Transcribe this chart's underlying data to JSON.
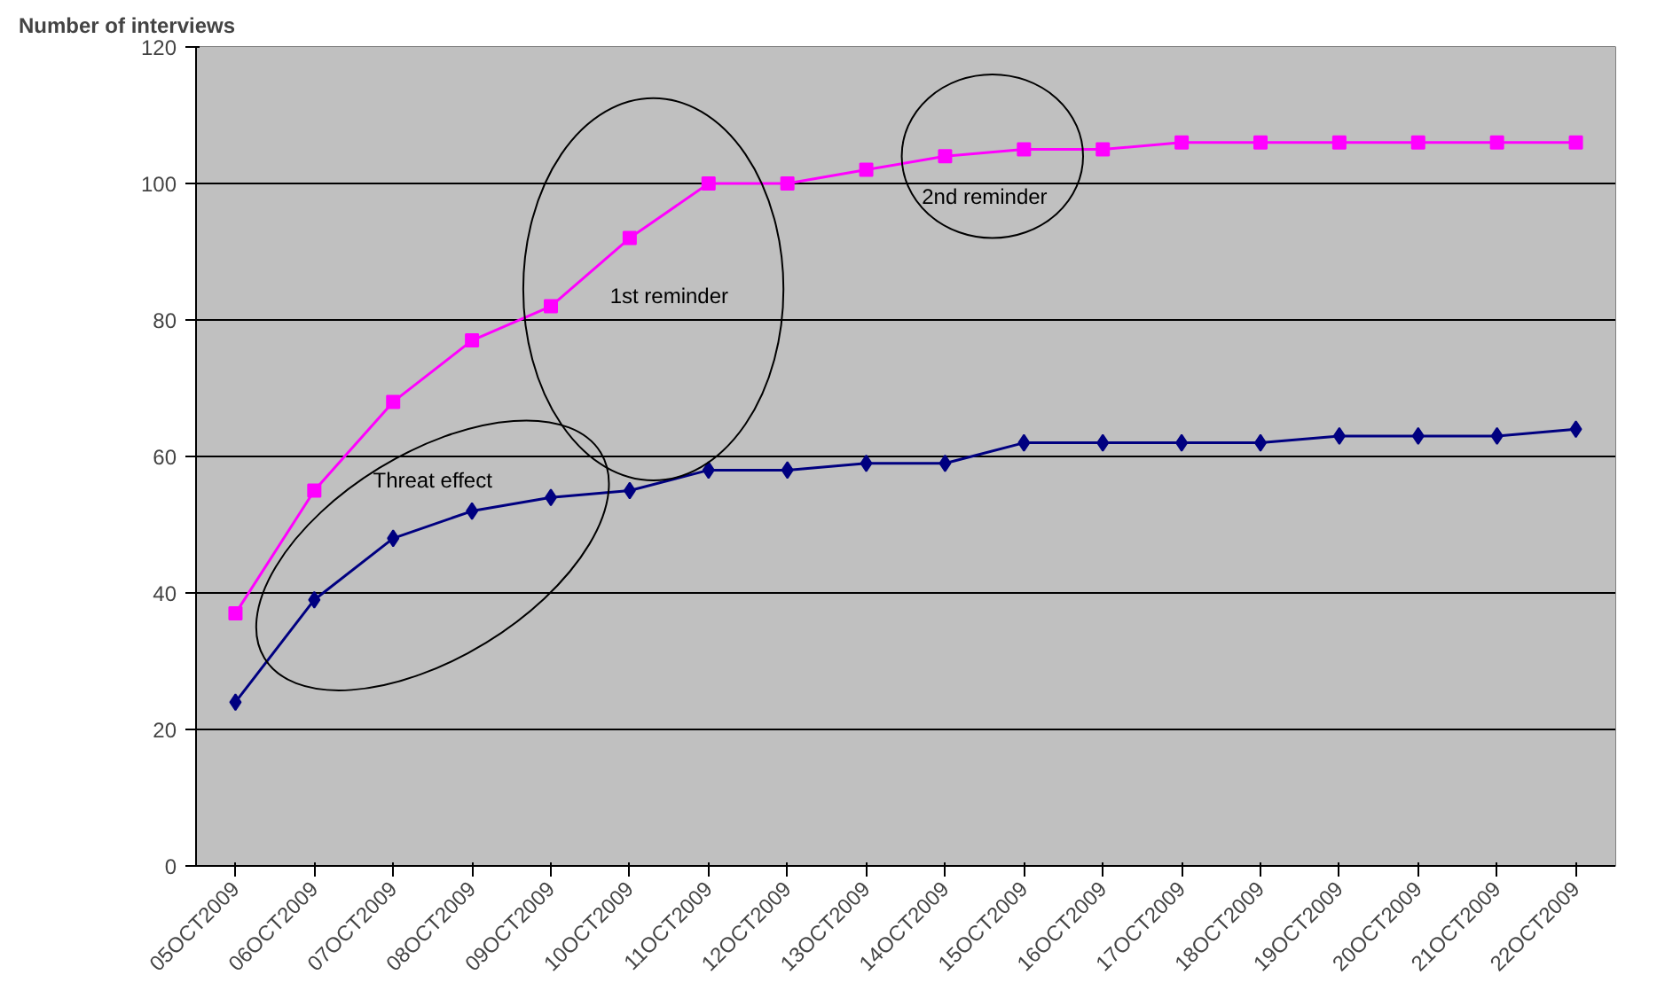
{
  "chart_data": {
    "type": "line",
    "ylabel": "Number of interviews",
    "categories": [
      "05OCT2009",
      "06OCT2009",
      "07OCT2009",
      "08OCT2009",
      "09OCT2009",
      "10OCT2009",
      "11OCT2009",
      "12OCT2009",
      "13OCT2009",
      "14OCT2009",
      "15OCT2009",
      "16OCT2009",
      "17OCT2009",
      "18OCT2009",
      "19OCT2009",
      "20OCT2009",
      "21OCT2009",
      "22OCT2009"
    ],
    "series": [
      {
        "color": "#000080",
        "marker": "diamond",
        "values": [
          24,
          39,
          48,
          52,
          54,
          55,
          58,
          58,
          59,
          59,
          62,
          62,
          62,
          62,
          63,
          63,
          63,
          64
        ]
      },
      {
        "color": "#ff00ff",
        "marker": "square",
        "values": [
          37,
          55,
          68,
          77,
          82,
          92,
          100,
          100,
          102,
          104,
          105,
          105,
          106,
          106,
          106,
          106,
          106,
          106
        ]
      }
    ],
    "ylim": [
      0,
      120
    ],
    "yticks": [
      0,
      20,
      40,
      60,
      80,
      100,
      120
    ],
    "grid": "y",
    "annotations": [
      "Threat effect",
      "1st reminder",
      "2nd reminder"
    ]
  }
}
